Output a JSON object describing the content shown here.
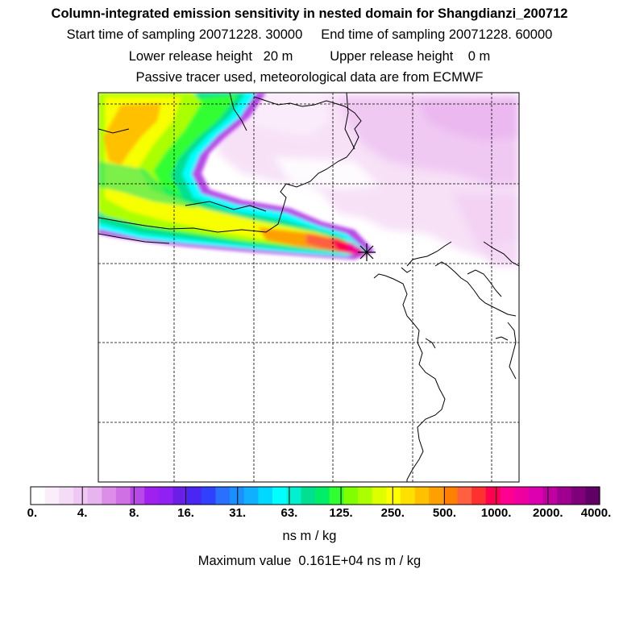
{
  "header": {
    "title": "Column-integrated emission sensitivity in nested domain for Shangdianzi_200712",
    "sampling": "Start time of sampling 20071228. 30000     End time of sampling 20071228. 60000",
    "release": "Lower release height   20 m          Upper release height    0 m",
    "tracer": "Passive tracer used, meteorological data are from ECMWF"
  },
  "colorbar": {
    "colors": [
      "#ffffff",
      "#fbeefb",
      "#f5dcf6",
      "#efc8f4",
      "#e8b4f0",
      "#dc8ee9",
      "#cf70e4",
      "#b848e8",
      "#a020f0",
      "#8f22f2",
      "#6a1ee6",
      "#4a26f4",
      "#3040ff",
      "#2a70ff",
      "#1a90ff",
      "#10b0ff",
      "#00d8ff",
      "#00ffff",
      "#00f0d0",
      "#00e090",
      "#00ee66",
      "#30ff30",
      "#7fff00",
      "#aaff00",
      "#ddff00",
      "#ffff00",
      "#ffe000",
      "#ffc000",
      "#ffa000",
      "#ff8000",
      "#ff6040",
      "#ff3030",
      "#ff0050",
      "#ff0090",
      "#ee00a0",
      "#dd00b0",
      "#c000a0",
      "#a00090",
      "#80007a",
      "#600066"
    ],
    "labels": [
      "0.",
      "4.",
      "8.",
      "16.",
      "31.",
      "63.",
      "125.",
      "250.",
      "500.",
      "1000.",
      "2000.",
      "4000."
    ]
  },
  "units": "ns m / kg",
  "max_value": "Maximum value  0.161E+04 ns m / kg"
}
